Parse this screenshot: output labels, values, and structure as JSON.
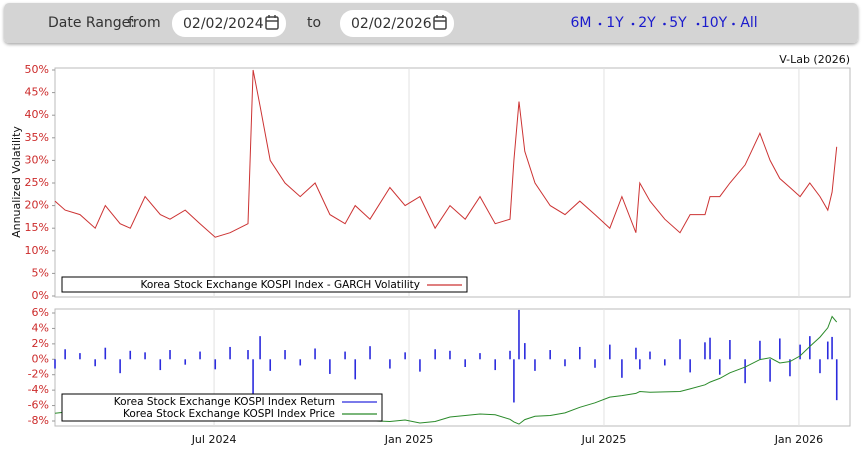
{
  "controls": {
    "label": "Date Range:",
    "from_label": "from",
    "from": "02/02/2024",
    "to_label": "to",
    "to": "02/02/2026",
    "ranges": [
      "6M",
      "1Y",
      "2Y",
      "5Y",
      "10Y",
      "All"
    ]
  },
  "source": "V-Lab (2026)",
  "chart_data": [
    {
      "type": "line",
      "y_label": "Annualized Volatility",
      "xlim": [
        2024.092,
        2026.131
      ],
      "xticks": [
        2024.5,
        2025,
        2025.5,
        2026
      ],
      "ylim": [
        0,
        50
      ],
      "yticks": [
        {
          "value": 0,
          "label": "0%"
        },
        {
          "value": 5,
          "label": "5%"
        },
        {
          "value": 10,
          "label": "10%"
        },
        {
          "value": 15,
          "label": "15%"
        },
        {
          "value": 20,
          "label": "20%"
        },
        {
          "value": 25,
          "label": "25%"
        },
        {
          "value": 30,
          "label": "30%"
        },
        {
          "value": 35,
          "label": "35%"
        },
        {
          "value": 40,
          "label": "40%"
        },
        {
          "value": 45,
          "label": "45%"
        },
        {
          "value": 50,
          "label": "50%"
        }
      ],
      "tick_color": "#cc2a2a",
      "grid": true,
      "legend": "bottom-left",
      "x": [
        2024.092,
        2024.118,
        2024.156,
        2024.195,
        2024.221,
        2024.259,
        2024.285,
        2024.323,
        2024.362,
        2024.387,
        2024.426,
        2024.464,
        2024.503,
        2024.541,
        2024.587,
        2024.6,
        2024.618,
        2024.644,
        2024.682,
        2024.721,
        2024.759,
        2024.797,
        2024.836,
        2024.862,
        2024.9,
        2024.951,
        2024.99,
        2025.028,
        2025.067,
        2025.105,
        2025.144,
        2025.182,
        2025.221,
        2025.259,
        2025.269,
        2025.282,
        2025.297,
        2025.323,
        2025.362,
        2025.4,
        2025.438,
        2025.477,
        2025.515,
        2025.546,
        2025.582,
        2025.592,
        2025.618,
        2025.656,
        2025.695,
        2025.721,
        2025.759,
        2025.772,
        2025.797,
        2025.823,
        2025.862,
        2025.9,
        2025.926,
        2025.951,
        2025.977,
        2026.003,
        2026.028,
        2026.054,
        2026.074,
        2026.085,
        2026.097
      ],
      "series": [
        {
          "name": "Korea Stock Exchange KOSPI Index - GARCH Volatility",
          "color": "#cc3333",
          "type": "line",
          "values": [
            21,
            19,
            18,
            15,
            20,
            16,
            15,
            22,
            18,
            17,
            19,
            16,
            13,
            14,
            16,
            50,
            42,
            30,
            25,
            22,
            25,
            18,
            16,
            20,
            17,
            24,
            20,
            22,
            15,
            20,
            17,
            22,
            16,
            17,
            30,
            43,
            32,
            25,
            20,
            18,
            21,
            18,
            15,
            22,
            14,
            25,
            21,
            17,
            14,
            18,
            18,
            22,
            22,
            25,
            29,
            36,
            30,
            26,
            24,
            22,
            25,
            22,
            19,
            23,
            33
          ]
        }
      ]
    },
    {
      "type": "combo",
      "xlim": [
        2024.092,
        2026.131
      ],
      "xticks": [
        {
          "value": 2024.5,
          "label": "Jul 2024"
        },
        {
          "value": 2025,
          "label": "Jan 2025"
        },
        {
          "value": 2025.5,
          "label": "Jul 2025"
        },
        {
          "value": 2026,
          "label": "Jan 2026"
        }
      ],
      "ylim": [
        -8.65,
        6.52
      ],
      "yticks": [
        {
          "value": -8,
          "label": "-8%"
        },
        {
          "value": -6,
          "label": "-6%"
        },
        {
          "value": -4,
          "label": "-4%"
        },
        {
          "value": -2,
          "label": "-2%"
        },
        {
          "value": 0,
          "label": "0%"
        },
        {
          "value": 2,
          "label": "2%"
        },
        {
          "value": 4,
          "label": "4%"
        },
        {
          "value": 6,
          "label": "6%"
        }
      ],
      "y2lim": [
        2280,
        5400
      ],
      "tick_color": "#cc2a2a",
      "grid": true,
      "legend": "bottom-left",
      "x": [
        2024.092,
        2024.118,
        2024.156,
        2024.195,
        2024.221,
        2024.259,
        2024.285,
        2024.323,
        2024.362,
        2024.387,
        2024.426,
        2024.464,
        2024.503,
        2024.541,
        2024.587,
        2024.6,
        2024.618,
        2024.644,
        2024.682,
        2024.721,
        2024.759,
        2024.797,
        2024.836,
        2024.862,
        2024.9,
        2024.951,
        2024.99,
        2025.028,
        2025.067,
        2025.105,
        2025.144,
        2025.182,
        2025.221,
        2025.259,
        2025.269,
        2025.282,
        2025.297,
        2025.323,
        2025.362,
        2025.4,
        2025.438,
        2025.477,
        2025.515,
        2025.546,
        2025.582,
        2025.592,
        2025.618,
        2025.656,
        2025.695,
        2025.721,
        2025.759,
        2025.772,
        2025.797,
        2025.823,
        2025.862,
        2025.9,
        2025.926,
        2025.951,
        2025.977,
        2026.003,
        2026.028,
        2026.054,
        2026.074,
        2026.085,
        2026.097
      ],
      "series": [
        {
          "name": "Korea Stock Exchange KOSPI Index Return",
          "color": "#2b2bdd",
          "type": "bar",
          "values": [
            -1.2,
            1.3,
            0.8,
            -0.9,
            1.5,
            -1.8,
            1.1,
            0.9,
            -1.4,
            1.2,
            -0.7,
            1.0,
            -1.3,
            1.6,
            1.2,
            -5.2,
            3.0,
            -1.5,
            1.2,
            -0.8,
            1.4,
            -1.9,
            1.0,
            -2.6,
            1.7,
            -1.2,
            0.9,
            -1.6,
            1.3,
            1.1,
            -1.0,
            0.8,
            -1.4,
            1.1,
            -5.6,
            6.4,
            2.1,
            -1.5,
            1.2,
            -0.9,
            1.6,
            -1.1,
            1.9,
            -2.4,
            1.5,
            -1.3,
            1.0,
            -0.8,
            2.6,
            -1.7,
            2.2,
            2.8,
            -2.0,
            2.5,
            -3.1,
            2.4,
            -2.9,
            2.7,
            -2.2,
            1.9,
            3.0,
            -1.8,
            2.3,
            2.9,
            -5.3
          ]
        },
        {
          "name": "Korea Stock Exchange KOSPI Index Price",
          "color": "#2a8a2a",
          "type": "line",
          "axis": "y2",
          "values": [
            2620,
            2650,
            2680,
            2700,
            2720,
            2740,
            2760,
            2730,
            2780,
            2800,
            2850,
            2860,
            2880,
            2800,
            2770,
            2440,
            2600,
            2650,
            2680,
            2600,
            2580,
            2560,
            2500,
            2480,
            2420,
            2400,
            2440,
            2360,
            2400,
            2520,
            2560,
            2600,
            2580,
            2460,
            2390,
            2330,
            2450,
            2540,
            2560,
            2630,
            2780,
            2900,
            3050,
            3090,
            3150,
            3200,
            3180,
            3190,
            3200,
            3270,
            3380,
            3450,
            3550,
            3700,
            3850,
            4050,
            4100,
            3960,
            4000,
            4150,
            4400,
            4650,
            4900,
            5200,
            5050
          ]
        }
      ]
    }
  ]
}
